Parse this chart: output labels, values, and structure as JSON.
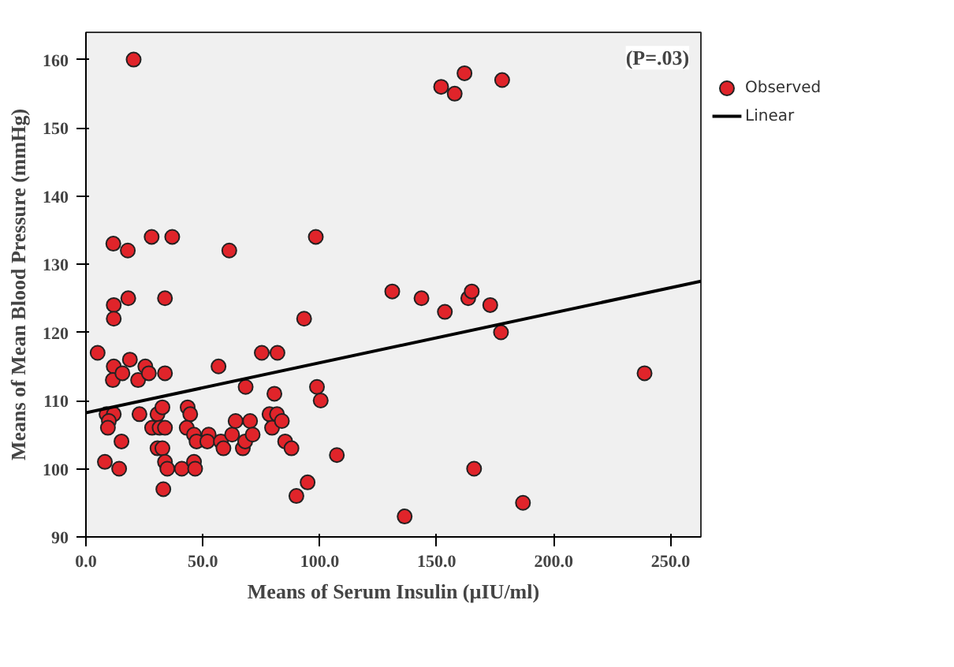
{
  "chart_data": {
    "type": "scatter",
    "xlabel": "Means of Serum Insulin (µIU/ml)",
    "ylabel": "Means of Mean Blood Pressure (mmHg)",
    "annotations": [
      "(P=.03)"
    ],
    "xlim": [
      0,
      263
    ],
    "ylim": [
      90,
      164
    ],
    "xticks": [
      {
        "value": 0,
        "label": "0.0"
      },
      {
        "value": 50,
        "label": "50.0"
      },
      {
        "value": 100,
        "label": "100.0"
      },
      {
        "value": 150,
        "label": "150.0"
      },
      {
        "value": 200,
        "label": "200.0"
      },
      {
        "value": 250,
        "label": "250.0"
      }
    ],
    "yticks": [
      90,
      100,
      110,
      120,
      130,
      140,
      150,
      160
    ],
    "grid": false,
    "legend": "top right",
    "series": [
      {
        "name": "Observed",
        "marker": "circle",
        "color": "#e0242a",
        "x": [
          20.4,
          11.7,
          17.9,
          28.1,
          36.9,
          61.3,
          98.3,
          131,
          11.9,
          11.9,
          18.1,
          33.8,
          93.3,
          5,
          11.9,
          11.5,
          15.6,
          18.8,
          22.3,
          25.4,
          26.9,
          33.8,
          56.7,
          75.2,
          81.9,
          68.3,
          80.6,
          98.8,
          100.4,
          8.8,
          11.9,
          9.8,
          9.4,
          15.2,
          8.1,
          14.2,
          22.9,
          30.6,
          32.7,
          28.3,
          31.5,
          33.8,
          30.6,
          32.7,
          33.8,
          34.8,
          33.1,
          41,
          43.5,
          44.6,
          43.1,
          46.2,
          47.3,
          46.2,
          46.7,
          52.5,
          51.9,
          57.7,
          58.8,
          62.5,
          64,
          67.1,
          68.1,
          70.2,
          71.3,
          78.5,
          79.6,
          81.7,
          83.8,
          85.2,
          87.9,
          90,
          94.8,
          107.3,
          151.9,
          157.7,
          161.9,
          178,
          143.5,
          153.5,
          163.5,
          165,
          172.9,
          177.5,
          238.9,
          166,
          186.9,
          136.3
        ],
        "values": [
          160,
          133,
          132,
          134,
          134,
          132,
          134,
          126,
          124,
          122,
          125,
          125,
          122,
          117,
          115,
          113,
          114,
          116,
          113,
          115,
          114,
          114,
          115,
          117,
          117,
          112,
          111,
          112,
          110,
          108,
          108,
          107,
          106,
          104,
          101,
          100,
          108,
          108,
          109,
          106,
          106,
          106,
          103,
          103,
          101,
          100,
          97,
          100,
          109,
          108,
          106,
          105,
          104,
          101,
          100,
          105,
          104,
          104,
          103,
          105,
          107,
          103,
          104,
          107,
          105,
          108,
          106,
          108,
          107,
          104,
          103,
          96,
          98,
          102,
          156,
          155,
          158,
          157,
          125,
          123,
          125,
          126,
          124,
          120,
          114,
          100,
          95,
          93
        ]
      },
      {
        "name": "Linear",
        "type": "line",
        "color": "#000000",
        "x": [
          0,
          263
        ],
        "values": [
          108.2,
          127.5
        ]
      }
    ]
  }
}
